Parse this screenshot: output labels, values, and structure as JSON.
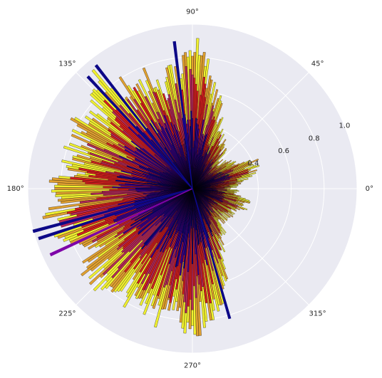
{
  "chart_data": {
    "type": "bar",
    "projection": "polar",
    "title": "",
    "theta_direction": "counterclockwise",
    "theta_zero": "east",
    "theta_ticks": [
      "0°",
      "45°",
      "90°",
      "135°",
      "180°",
      "225°",
      "270°",
      "315°"
    ],
    "theta_tick_values": [
      0,
      45,
      90,
      135,
      180,
      225,
      270,
      315
    ],
    "r_ticks": [
      "0.2",
      "0.4",
      "0.6",
      "0.8",
      "1.0"
    ],
    "r_tick_values": [
      0.2,
      0.4,
      0.6,
      0.8,
      1.0
    ],
    "r_tick_angle_deg": 22.5,
    "rlim": [
      0,
      1.0
    ],
    "grid": true,
    "background": "#EAEAF2",
    "colormap": "plasma-like (dark blue → red → yellow)",
    "color_scale": [
      "#0d0887",
      "#3c0495",
      "#7e03a8",
      "#b52a5a",
      "#d62020",
      "#e0a030",
      "#f0f030"
    ],
    "bar_edge_color": "#000000",
    "bar_count": 360,
    "bar_width_deg": 1,
    "bars_description": "Dense random polar bars; longest bars concentrated between ~100° and ~280°, generally short between ~300° and ~60°.",
    "bars": [
      {
        "theta": 0,
        "r": 0.28
      },
      {
        "theta": 5,
        "r": 0.3
      },
      {
        "theta": 10,
        "r": 0.35
      },
      {
        "theta": 15,
        "r": 0.42
      },
      {
        "theta": 20,
        "r": 0.44
      },
      {
        "theta": 25,
        "r": 0.45
      },
      {
        "theta": 30,
        "r": 0.33
      },
      {
        "theta": 35,
        "r": 0.3
      },
      {
        "theta": 40,
        "r": 0.28
      },
      {
        "theta": 45,
        "r": 0.25
      },
      {
        "theta": 50,
        "r": 0.34
      },
      {
        "theta": 55,
        "r": 0.36
      },
      {
        "theta": 60,
        "r": 0.42
      },
      {
        "theta": 65,
        "r": 0.48
      },
      {
        "theta": 70,
        "r": 0.55
      },
      {
        "theta": 75,
        "r": 0.62
      },
      {
        "theta": 80,
        "r": 0.72
      },
      {
        "theta": 85,
        "r": 0.85
      },
      {
        "theta": 88,
        "r": 0.97
      },
      {
        "theta": 92,
        "r": 0.9
      },
      {
        "theta": 95,
        "r": 0.85
      },
      {
        "theta": 100,
        "r": 0.8
      },
      {
        "theta": 105,
        "r": 0.7
      },
      {
        "theta": 110,
        "r": 0.82
      },
      {
        "theta": 115,
        "r": 0.75
      },
      {
        "theta": 120,
        "r": 0.87
      },
      {
        "theta": 125,
        "r": 0.77
      },
      {
        "theta": 130,
        "r": 0.95
      },
      {
        "theta": 135,
        "r": 0.93
      },
      {
        "theta": 140,
        "r": 0.8
      },
      {
        "theta": 145,
        "r": 0.78
      },
      {
        "theta": 150,
        "r": 0.88
      },
      {
        "theta": 155,
        "r": 0.82
      },
      {
        "theta": 160,
        "r": 0.86
      },
      {
        "theta": 165,
        "r": 0.79
      },
      {
        "theta": 170,
        "r": 0.84
      },
      {
        "theta": 175,
        "r": 0.9
      },
      {
        "theta": 180,
        "r": 0.88
      },
      {
        "theta": 185,
        "r": 0.85
      },
      {
        "theta": 190,
        "r": 0.92
      },
      {
        "theta": 195,
        "r": 1.0
      },
      {
        "theta": 200,
        "r": 0.94
      },
      {
        "theta": 205,
        "r": 0.83
      },
      {
        "theta": 210,
        "r": 0.87
      },
      {
        "theta": 215,
        "r": 0.82
      },
      {
        "theta": 220,
        "r": 0.88
      },
      {
        "theta": 225,
        "r": 0.9
      },
      {
        "theta": 230,
        "r": 0.84
      },
      {
        "theta": 235,
        "r": 0.8
      },
      {
        "theta": 240,
        "r": 0.86
      },
      {
        "theta": 245,
        "r": 0.84
      },
      {
        "theta": 250,
        "r": 0.83
      },
      {
        "theta": 255,
        "r": 0.9
      },
      {
        "theta": 260,
        "r": 0.86
      },
      {
        "theta": 265,
        "r": 0.95
      },
      {
        "theta": 270,
        "r": 0.92
      },
      {
        "theta": 275,
        "r": 0.88
      },
      {
        "theta": 280,
        "r": 0.84
      },
      {
        "theta": 285,
        "r": 0.78
      },
      {
        "theta": 290,
        "r": 0.62
      },
      {
        "theta": 295,
        "r": 0.48
      },
      {
        "theta": 300,
        "r": 0.42
      },
      {
        "theta": 305,
        "r": 0.35
      },
      {
        "theta": 310,
        "r": 0.32
      },
      {
        "theta": 315,
        "r": 0.3
      },
      {
        "theta": 320,
        "r": 0.28
      },
      {
        "theta": 325,
        "r": 0.32
      },
      {
        "theta": 330,
        "r": 0.3
      },
      {
        "theta": 335,
        "r": 0.34
      },
      {
        "theta": 340,
        "r": 0.36
      },
      {
        "theta": 345,
        "r": 0.38
      },
      {
        "theta": 350,
        "r": 0.35
      },
      {
        "theta": 355,
        "r": 0.32
      }
    ]
  }
}
